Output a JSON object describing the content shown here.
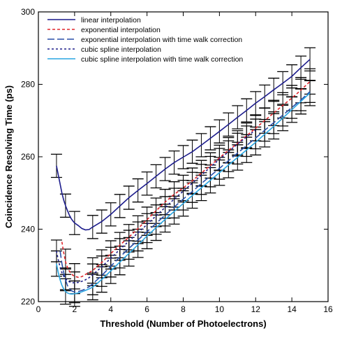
{
  "chart_data": {
    "type": "line",
    "title": "",
    "xlabel": "Threshold (Number of Photoelectrons)",
    "ylabel": "Coincidence Resolving Time (ps)",
    "xlim": [
      0,
      16
    ],
    "ylim": [
      220,
      300
    ],
    "xticks": [
      0,
      2,
      4,
      6,
      8,
      10,
      12,
      14,
      16
    ],
    "yticks": [
      220,
      240,
      260,
      280,
      300
    ],
    "legend_position": "top-left",
    "grid": false,
    "series": [
      {
        "name": "linear interpolation",
        "color": "#1c1c8c",
        "dash": "solid",
        "error": 3.2,
        "x": [
          1.0,
          1.1,
          1.2,
          1.3,
          1.4,
          1.5,
          1.6,
          1.7,
          1.8,
          1.9,
          2.0,
          2.2,
          2.4,
          2.6,
          2.8,
          3.0,
          3.5,
          4.0,
          4.5,
          5.0,
          5.5,
          6.0,
          6.5,
          7.0,
          7.5,
          8.0,
          8.5,
          9.0,
          9.5,
          10.0,
          10.5,
          11.0,
          11.5,
          12.0,
          12.5,
          13.0,
          13.5,
          14.0,
          14.5,
          15.0
        ],
        "y": [
          257.5,
          255.0,
          252.5,
          250.0,
          248.0,
          246.5,
          245.2,
          244.0,
          243.0,
          242.3,
          241.7,
          241.0,
          240.2,
          239.8,
          239.9,
          240.6,
          242.1,
          244.1,
          246.4,
          248.7,
          250.7,
          252.6,
          254.6,
          256.6,
          258.4,
          259.9,
          261.4,
          263.2,
          265.1,
          267.0,
          268.9,
          270.9,
          272.8,
          274.8,
          276.6,
          278.5,
          280.3,
          282.2,
          284.6,
          286.9
        ]
      },
      {
        "name": "exponential interpolation",
        "color": "#e0262c",
        "dash": "4,3",
        "error": 3.5,
        "x": [
          1.3,
          1.4,
          1.5,
          1.6,
          1.7,
          1.8,
          1.9,
          2.0,
          2.2,
          2.4,
          2.6,
          2.8,
          3.0,
          3.5,
          4.0,
          4.5,
          5.0,
          5.5,
          6.0,
          6.5,
          7.0,
          7.5,
          8.0,
          8.5,
          9.0,
          9.5,
          10.0,
          10.5,
          11.0,
          11.5,
          12.0,
          12.5,
          13.0,
          13.5,
          14.0,
          14.5,
          15.0
        ],
        "y": [
          236.5,
          233.5,
          231.0,
          229.5,
          228.5,
          227.8,
          227.3,
          227.0,
          226.7,
          226.9,
          227.5,
          228.0,
          228.6,
          230.8,
          233.3,
          235.6,
          237.8,
          240.2,
          242.6,
          245.1,
          247.5,
          249.6,
          251.4,
          253.4,
          255.5,
          257.6,
          259.7,
          261.8,
          263.7,
          265.8,
          267.9,
          270.0,
          272.1,
          274.2,
          276.2,
          278.4,
          280.8
        ]
      },
      {
        "name": "exponential interpolation with time walk correction",
        "color": "#2a4fa8",
        "dash": "10,4",
        "error": 3.0,
        "x": [
          1.2,
          1.3,
          1.4,
          1.5,
          1.6,
          1.7,
          1.8,
          1.9,
          2.0,
          2.2,
          2.4,
          2.6,
          2.8,
          3.0,
          3.5,
          4.0,
          4.5,
          5.0,
          5.5,
          6.0,
          6.5,
          7.0,
          7.5,
          8.0,
          8.5,
          9.0,
          9.5,
          10.0,
          10.5,
          11.0,
          11.5,
          12.0,
          12.5,
          13.0,
          13.5,
          14.0,
          14.5,
          15.0
        ],
        "y": [
          234.0,
          230.5,
          228.0,
          226.0,
          224.5,
          223.6,
          223.1,
          222.8,
          222.7,
          222.8,
          223.1,
          223.5,
          224.1,
          224.9,
          227.2,
          229.8,
          232.3,
          234.7,
          237.0,
          239.3,
          241.6,
          243.9,
          246.1,
          248.3,
          250.4,
          252.6,
          254.7,
          256.8,
          258.9,
          261.0,
          263.1,
          265.2,
          267.3,
          269.4,
          271.5,
          273.6,
          275.7,
          278.0
        ]
      },
      {
        "name": "cubic spline interpolation",
        "color": "#1f1f8a",
        "dash": "3,3",
        "error": 3.0,
        "x": [
          1.0,
          1.1,
          1.2,
          1.3,
          1.4,
          1.5,
          1.6,
          1.7,
          1.8,
          1.9,
          2.0,
          2.2,
          2.4,
          2.6,
          2.8,
          3.0,
          3.5,
          4.0,
          4.5,
          5.0,
          5.5,
          6.0,
          6.5,
          7.0,
          7.5,
          8.0,
          8.5,
          9.0,
          9.5,
          10.0,
          10.5,
          11.0,
          11.5,
          12.0
        ],
        "y": [
          234.0,
          231.5,
          229.5,
          228.0,
          227.0,
          226.3,
          225.8,
          225.5,
          225.3,
          225.2,
          225.2,
          225.3,
          225.6,
          226.0,
          226.6,
          227.4,
          229.6,
          232.0,
          234.4,
          236.7,
          239.0,
          241.3,
          243.7,
          246.0,
          248.3,
          250.5,
          252.7,
          254.9,
          257.1,
          259.3,
          261.4,
          263.5,
          265.5,
          267.4
        ]
      },
      {
        "name": "cubic spline interpolation with time walk correction",
        "color": "#2aa6e2",
        "dash": "solid",
        "error": 3.5,
        "x": [
          1.0,
          1.1,
          1.2,
          1.3,
          1.4,
          1.5,
          1.6,
          1.7,
          1.8,
          1.9,
          2.0,
          2.2,
          2.4,
          2.6,
          2.8,
          3.0,
          3.5,
          4.0,
          4.5,
          5.0,
          5.5,
          6.0,
          6.5,
          7.0,
          7.5,
          8.0,
          8.5,
          9.0,
          9.5,
          10.0,
          10.5,
          11.0,
          11.5,
          12.0,
          12.5,
          13.0,
          13.5,
          14.0,
          14.5,
          15.0
        ],
        "y": [
          230.5,
          228.0,
          226.0,
          224.5,
          223.5,
          222.8,
          222.4,
          222.2,
          222.1,
          222.1,
          222.2,
          222.4,
          222.7,
          223.1,
          223.5,
          224.0,
          226.1,
          228.5,
          230.9,
          233.3,
          235.7,
          238.1,
          240.4,
          242.7,
          244.9,
          247.1,
          249.3,
          251.4,
          253.5,
          255.6,
          257.7,
          259.8,
          261.9,
          264.0,
          266.2,
          268.4,
          270.7,
          273.0,
          275.3,
          277.6
        ]
      }
    ]
  }
}
